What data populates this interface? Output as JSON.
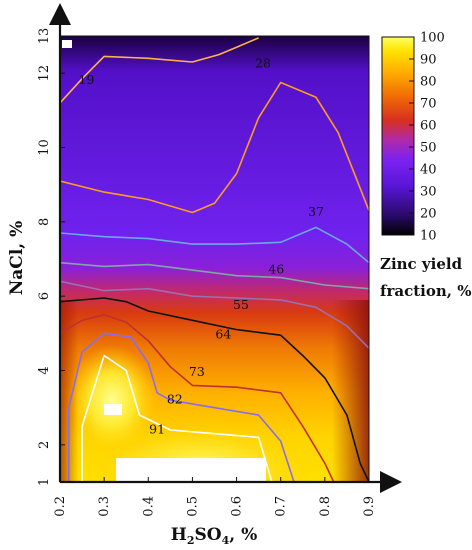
{
  "chart_data": {
    "type": "heatmap",
    "title": "",
    "xlabel": {
      "base": "H",
      "sub1": "2",
      "mid": "SO",
      "sub2": "4",
      "tail": ", %"
    },
    "ylabel": "NaCl, %",
    "xlim": [
      0.2,
      0.9
    ],
    "ylim": [
      1,
      13
    ],
    "x_ticks": [
      "0.2",
      "0.3",
      "0.4",
      "0.5",
      "0.6",
      "0.7",
      "0.8",
      "0.9"
    ],
    "y_ticks": [
      "1",
      "2",
      "4",
      "6",
      "8",
      "10",
      "12",
      "13"
    ],
    "grid": false,
    "colorbar": {
      "title_line1": "Zinc yield",
      "title_line2": "fraction, %",
      "range": [
        10,
        100
      ],
      "ticks": [
        "10",
        "20",
        "30",
        "40",
        "50",
        "60",
        "70",
        "80",
        "90",
        "100"
      ]
    },
    "colors": {
      "purple": "#6a1ce6",
      "deep_purple": "#2a0060",
      "red": "#d8300a",
      "orange": "#f5820a",
      "yellow": "#ffd400",
      "pale_yellow": "#ffff80"
    },
    "contours": [
      {
        "level": 19,
        "label": "19",
        "color": "#ffb14a",
        "points": [
          [
            0.2,
            11.2
          ],
          [
            0.25,
            11.85
          ],
          [
            0.3,
            12.45
          ],
          [
            0.4,
            12.4
          ],
          [
            0.5,
            12.3
          ],
          [
            0.56,
            12.5
          ],
          [
            0.6,
            12.7
          ],
          [
            0.65,
            12.95
          ]
        ]
      },
      {
        "level": 28,
        "label": "28",
        "color": "#ff9c20",
        "points": [
          [
            0.2,
            9.1
          ],
          [
            0.3,
            8.8
          ],
          [
            0.4,
            8.6
          ],
          [
            0.5,
            8.25
          ],
          [
            0.55,
            8.5
          ],
          [
            0.6,
            9.3
          ],
          [
            0.65,
            10.8
          ],
          [
            0.7,
            11.75
          ],
          [
            0.78,
            11.35
          ],
          [
            0.83,
            10.4
          ],
          [
            0.87,
            9.2
          ],
          [
            0.9,
            8.3
          ]
        ]
      },
      {
        "level": 37,
        "label": "37",
        "color": "#6aa9e8",
        "points": [
          [
            0.2,
            7.7
          ],
          [
            0.3,
            7.6
          ],
          [
            0.4,
            7.55
          ],
          [
            0.5,
            7.4
          ],
          [
            0.6,
            7.4
          ],
          [
            0.7,
            7.45
          ],
          [
            0.78,
            7.85
          ],
          [
            0.85,
            7.4
          ],
          [
            0.9,
            6.9
          ]
        ]
      },
      {
        "level": 46,
        "label": "46",
        "color": "#7fa6a6",
        "points": [
          [
            0.2,
            6.9
          ],
          [
            0.3,
            6.8
          ],
          [
            0.4,
            6.85
          ],
          [
            0.5,
            6.7
          ],
          [
            0.6,
            6.55
          ],
          [
            0.7,
            6.5
          ],
          [
            0.8,
            6.3
          ],
          [
            0.9,
            6.2
          ]
        ]
      },
      {
        "level": 55,
        "label": "55",
        "color": "#9a6fb4",
        "points": [
          [
            0.2,
            6.4
          ],
          [
            0.3,
            6.15
          ],
          [
            0.4,
            6.2
          ],
          [
            0.5,
            6.0
          ],
          [
            0.6,
            5.95
          ],
          [
            0.7,
            5.9
          ],
          [
            0.78,
            5.7
          ],
          [
            0.85,
            5.2
          ],
          [
            0.9,
            4.6
          ]
        ]
      },
      {
        "level": 64,
        "label": "64",
        "color": "#111111",
        "points": [
          [
            0.2,
            5.85
          ],
          [
            0.3,
            5.95
          ],
          [
            0.35,
            5.85
          ],
          [
            0.4,
            5.6
          ],
          [
            0.5,
            5.35
          ],
          [
            0.6,
            5.1
          ],
          [
            0.7,
            4.95
          ],
          [
            0.75,
            4.4
          ],
          [
            0.8,
            3.8
          ],
          [
            0.85,
            2.8
          ],
          [
            0.88,
            1.5
          ],
          [
            0.9,
            1.0
          ]
        ]
      },
      {
        "level": 73,
        "label": "73",
        "color": "#c03030",
        "points": [
          [
            0.2,
            5.0
          ],
          [
            0.25,
            5.35
          ],
          [
            0.3,
            5.5
          ],
          [
            0.35,
            5.3
          ],
          [
            0.4,
            4.8
          ],
          [
            0.45,
            4.1
          ],
          [
            0.5,
            3.6
          ],
          [
            0.6,
            3.55
          ],
          [
            0.7,
            3.4
          ],
          [
            0.75,
            2.5
          ],
          [
            0.8,
            1.5
          ],
          [
            0.82,
            1.0
          ]
        ]
      },
      {
        "level": 82,
        "label": "82",
        "color": "#8a6cf0",
        "points": [
          [
            0.22,
            1.0
          ],
          [
            0.22,
            3.0
          ],
          [
            0.25,
            4.5
          ],
          [
            0.3,
            5.0
          ],
          [
            0.36,
            4.9
          ],
          [
            0.4,
            4.2
          ],
          [
            0.42,
            3.4
          ],
          [
            0.45,
            3.2
          ],
          [
            0.55,
            3.0
          ],
          [
            0.65,
            2.8
          ],
          [
            0.7,
            2.1
          ],
          [
            0.73,
            1.0
          ]
        ]
      },
      {
        "level": 91,
        "label": "91",
        "color": "#ffffff",
        "points": [
          [
            0.25,
            1.0
          ],
          [
            0.25,
            2.5
          ],
          [
            0.3,
            4.4
          ],
          [
            0.35,
            4.0
          ],
          [
            0.38,
            2.8
          ],
          [
            0.45,
            2.4
          ],
          [
            0.55,
            2.3
          ],
          [
            0.65,
            2.2
          ],
          [
            0.68,
            1.0
          ]
        ]
      }
    ],
    "contour_labels": [
      {
        "text": "19",
        "x": 0.26,
        "y": 11.8
      },
      {
        "text": "28",
        "x": 0.66,
        "y": 12.25
      },
      {
        "text": "37",
        "x": 0.78,
        "y": 8.25
      },
      {
        "text": "46",
        "x": 0.69,
        "y": 6.7
      },
      {
        "text": "55",
        "x": 0.61,
        "y": 5.75
      },
      {
        "text": "64",
        "x": 0.57,
        "y": 4.95
      },
      {
        "text": "73",
        "x": 0.51,
        "y": 3.95
      },
      {
        "text": "82",
        "x": 0.46,
        "y": 3.2
      },
      {
        "text": "91",
        "x": 0.42,
        "y": 2.4
      }
    ]
  }
}
